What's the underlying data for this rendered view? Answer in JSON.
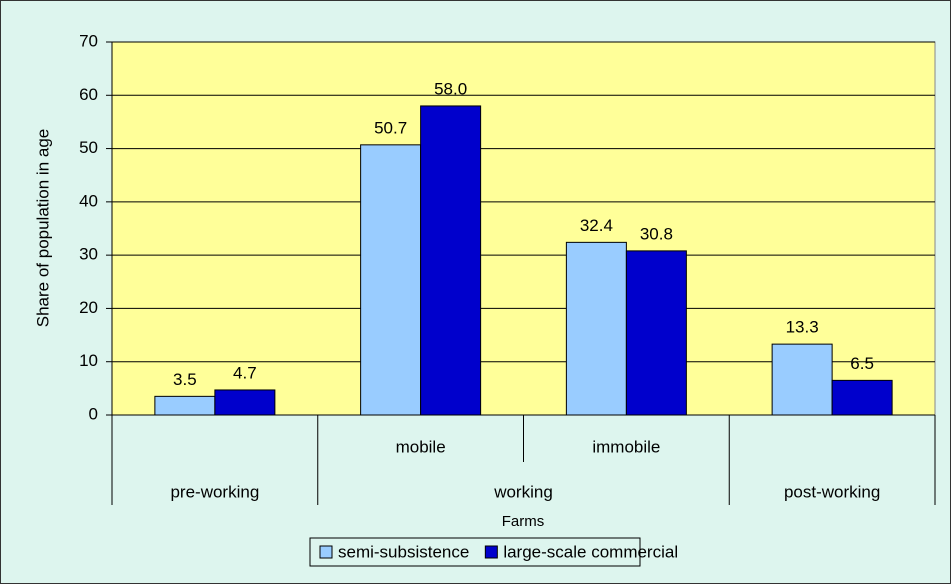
{
  "chart_data": {
    "type": "bar",
    "y_label": "Share of population in age",
    "x_label": "Farms",
    "categories": [
      null,
      "mobile",
      "immobile",
      null
    ],
    "groups": [
      "pre-working",
      "working",
      "working",
      "post-working"
    ],
    "series": [
      {
        "name": "semi-subsistence",
        "color": "#99ccff",
        "values": [
          3.5,
          50.7,
          32.4,
          13.3
        ],
        "value_labels": [
          "3.5",
          "50.7",
          "32.4",
          "13.3"
        ]
      },
      {
        "name": "large-scale commercial",
        "color": "#0000cc",
        "values": [
          4.7,
          58,
          30.8,
          6.5
        ],
        "value_labels": [
          "4.7",
          "58.0",
          "30.8",
          "6.5"
        ]
      }
    ],
    "ylim": [
      0,
      70
    ],
    "yticks": [
      0,
      10,
      20,
      30,
      40,
      50,
      60,
      70
    ],
    "grid": true,
    "legend": "bottom"
  }
}
